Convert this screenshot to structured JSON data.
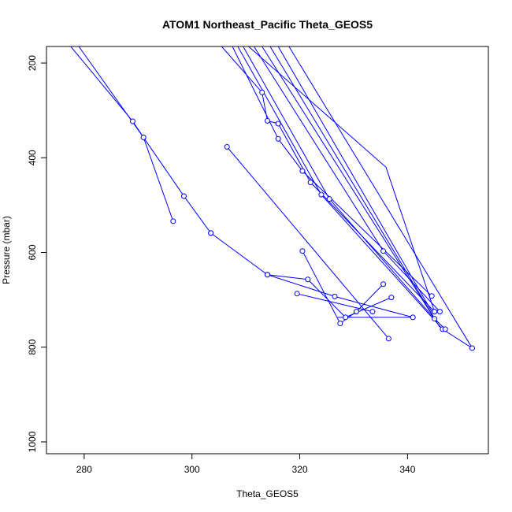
{
  "chart_data": {
    "type": "line",
    "title": "ATOM1 Northeast_Pacific Theta_GEOS5",
    "xlabel": "Theta_GEOS5",
    "ylabel": "Pressure (mbar)",
    "xlim": [
      273,
      355
    ],
    "ylim": [
      1025,
      165
    ],
    "y_reversed": true,
    "grid": false,
    "legend": "none",
    "color": "#0000ff",
    "marker": "open-circle",
    "x_ticks": [
      280,
      300,
      320,
      340
    ],
    "y_ticks": [
      200,
      400,
      600,
      800,
      1000
    ],
    "series": [
      {
        "x": [
          277.5,
          289.0,
          291.0,
          296.5
        ],
        "y": [
          165,
          323,
          357,
          534
        ],
        "markers": [
          false,
          true,
          true,
          true
        ]
      },
      {
        "x": [
          279.0,
          291.0,
          298.5,
          303.5
        ],
        "y": [
          165,
          357,
          481,
          559
        ],
        "markers": [
          false,
          true,
          true,
          true
        ]
      },
      {
        "x": [
          303.5,
          314.0,
          321.5,
          328.5,
          337.0
        ],
        "y": [
          559,
          647,
          657,
          737,
          695
        ],
        "markers": [
          true,
          true,
          true,
          true,
          true
        ]
      },
      {
        "x": [
          314.0,
          326.5,
          341.0,
          327.0
        ],
        "y": [
          647,
          693,
          737,
          737
        ],
        "markers": [
          true,
          true,
          true,
          false
        ]
      },
      {
        "x": [
          306.5,
          336.5
        ],
        "y": [
          377,
          782
        ],
        "markers": [
          true,
          true
        ]
      },
      {
        "x": [
          320.5,
          327.5,
          330.5,
          335.5
        ],
        "y": [
          597,
          750,
          725,
          667
        ],
        "markers": [
          true,
          true,
          true,
          true
        ]
      },
      {
        "x": [
          319.5,
          333.5
        ],
        "y": [
          687,
          725
        ],
        "markers": [
          true,
          true
        ]
      },
      {
        "x": [
          305.5,
          313.0,
          314.0,
          316.0,
          322.0,
          345.0
        ],
        "y": [
          165,
          262,
          322,
          328,
          452,
          725
        ],
        "markers": [
          false,
          true,
          true,
          true,
          true,
          true
        ]
      },
      {
        "x": [
          307.5,
          316.0,
          320.5,
          344.5
        ],
        "y": [
          165,
          360,
          428,
          692
        ],
        "markers": [
          false,
          true,
          true,
          true
        ]
      },
      {
        "x": [
          308.5,
          324.0,
          346.5,
          352.0
        ],
        "y": [
          165,
          478,
          762,
          802
        ],
        "markers": [
          false,
          true,
          true,
          true
        ]
      },
      {
        "x": [
          309.5,
          325.5,
          345.0,
          347.0
        ],
        "y": [
          165,
          487,
          740,
          762
        ],
        "markers": [
          false,
          true,
          true,
          true
        ]
      },
      {
        "x": [
          310.5,
          336.0,
          345.0
        ],
        "y": [
          165,
          420,
          725
        ],
        "markers": [
          false,
          false,
          true
        ]
      },
      {
        "x": [
          311.5,
          335.5,
          346.0
        ],
        "y": [
          165,
          597,
          725
        ],
        "markers": [
          false,
          true,
          true
        ]
      },
      {
        "x": [
          313.0,
          345.0
        ],
        "y": [
          165,
          740
        ],
        "markers": [
          false,
          false
        ]
      },
      {
        "x": [
          314.5,
          346.0
        ],
        "y": [
          165,
          758
        ],
        "markers": [
          false,
          false
        ]
      },
      {
        "x": [
          316.0,
          344.5
        ],
        "y": [
          165,
          725
        ],
        "markers": [
          false,
          false
        ]
      },
      {
        "x": [
          318.0,
          352.0
        ],
        "y": [
          165,
          802
        ],
        "markers": [
          false,
          false
        ]
      }
    ]
  }
}
